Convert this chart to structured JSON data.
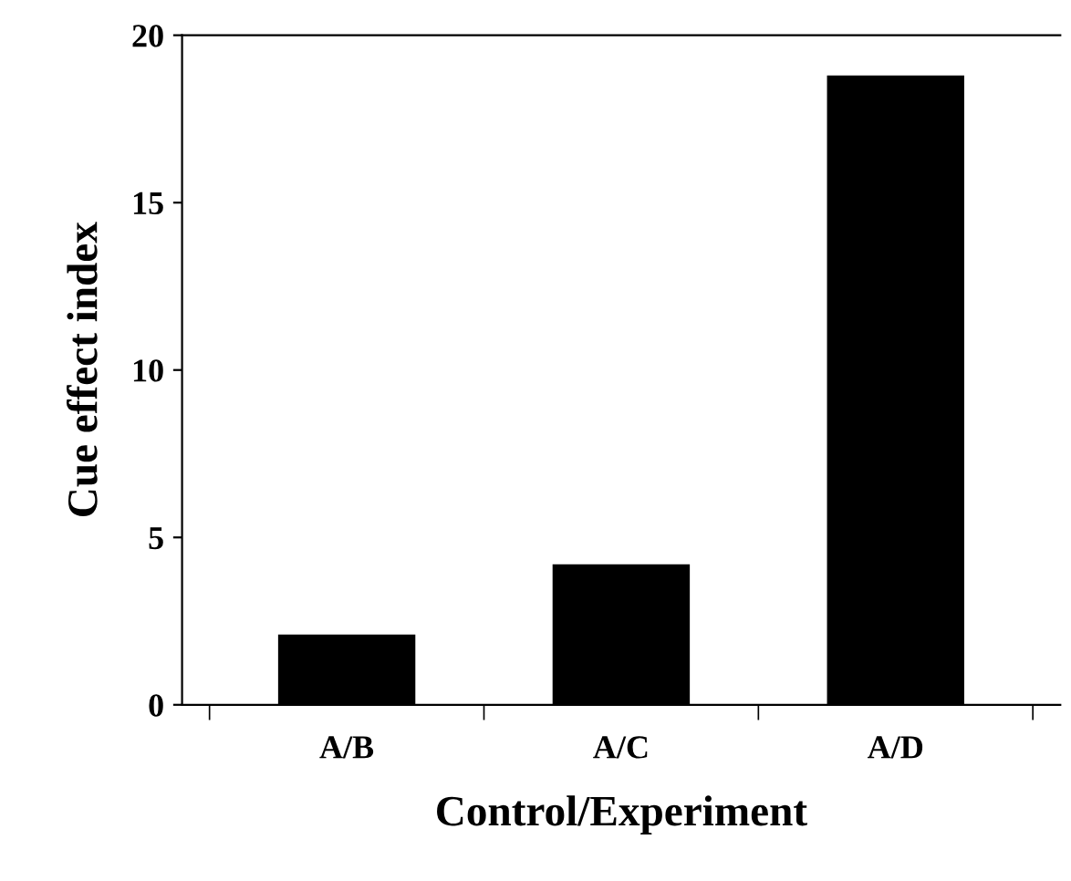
{
  "chart_data": {
    "type": "bar",
    "xlabel": "Control/Experiment",
    "ylabel": "Cue effect index",
    "categories": [
      "A/B",
      "A/C",
      "A/D"
    ],
    "values": [
      2.1,
      4.2,
      18.8
    ],
    "color": "#000000",
    "ylim": [
      0,
      20
    ],
    "yticks": [
      0,
      5,
      10,
      15,
      20
    ],
    "grid": false,
    "legend": false
  }
}
